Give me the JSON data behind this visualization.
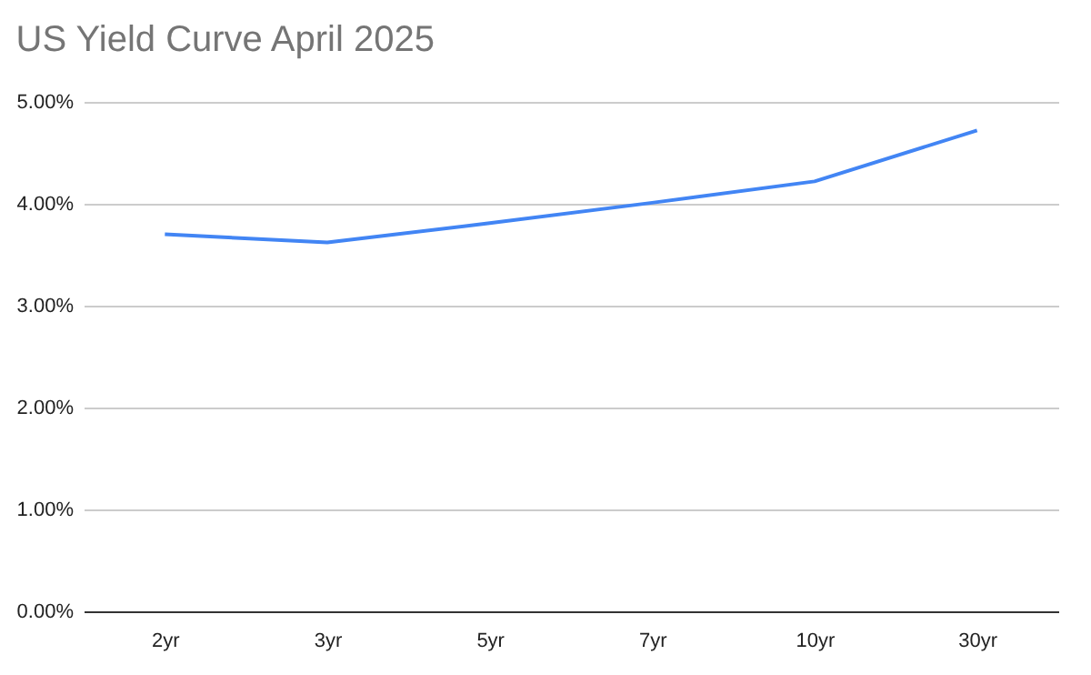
{
  "chart_data": {
    "type": "line",
    "title": "US Yield Curve April 2025",
    "categories": [
      "2yr",
      "3yr",
      "5yr",
      "7yr",
      "10yr",
      "30yr"
    ],
    "series": [
      {
        "color": "#4285f4",
        "values": [
          3.7,
          3.62,
          3.81,
          4.01,
          4.22,
          4.72
        ]
      }
    ],
    "ylim": [
      0,
      5
    ],
    "yticks": [
      {
        "value": 0,
        "label": "0.00%"
      },
      {
        "value": 1,
        "label": "1.00%"
      },
      {
        "value": 2,
        "label": "2.00%"
      },
      {
        "value": 3,
        "label": "3.00%"
      },
      {
        "value": 4,
        "label": "4.00%"
      },
      {
        "value": 5,
        "label": "5.00%"
      }
    ],
    "grid": "y",
    "legend": false,
    "marker": "none",
    "line_style": "solid"
  }
}
